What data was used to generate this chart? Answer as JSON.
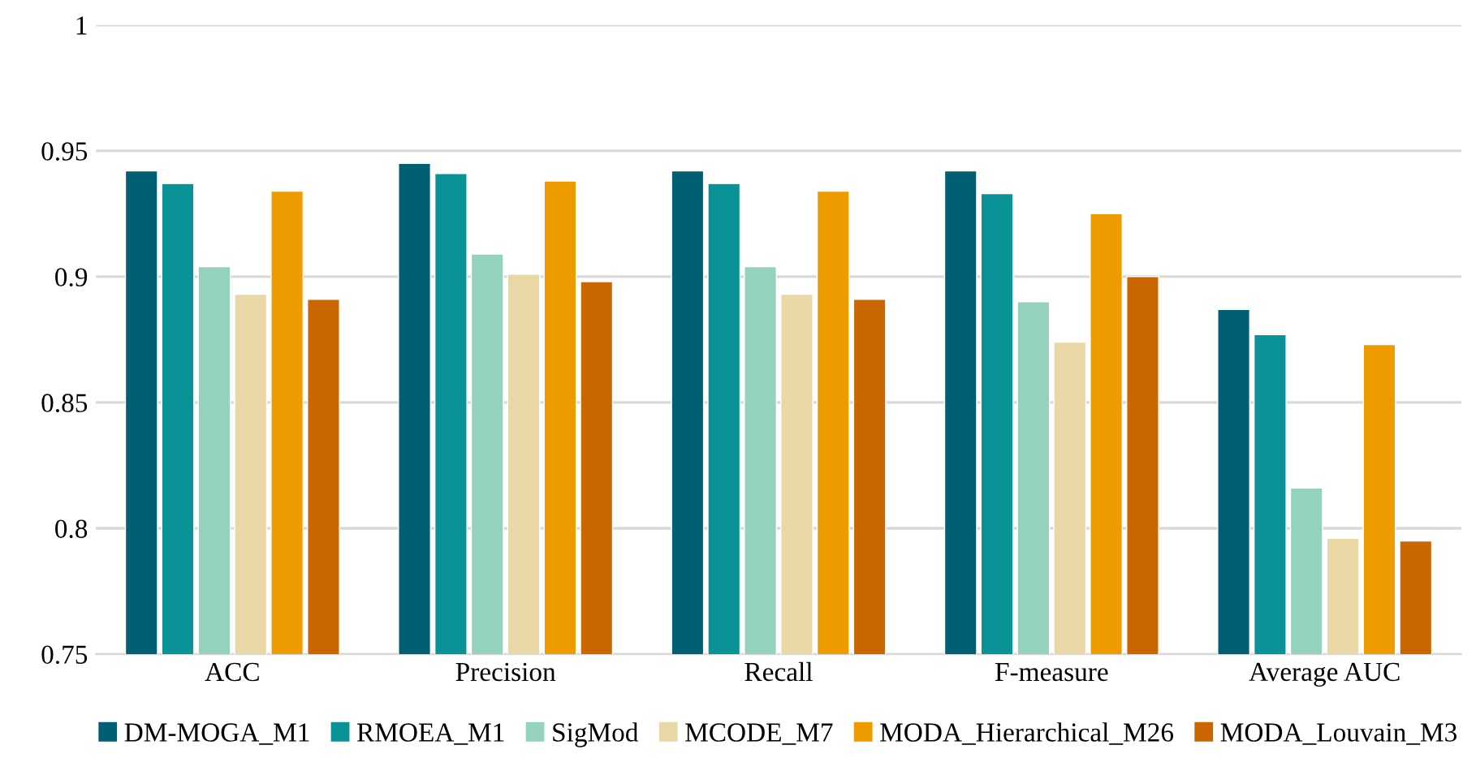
{
  "chart_data": {
    "type": "bar",
    "categories": [
      "ACC",
      "Precision",
      "Recall",
      "F-measure",
      "Average AUC"
    ],
    "series": [
      {
        "name": "DM-MOGA_M1",
        "color": "#005f73",
        "values": [
          0.942,
          0.945,
          0.942,
          0.942,
          0.887
        ]
      },
      {
        "name": "RMOEA_M1",
        "color": "#0a9396",
        "values": [
          0.937,
          0.941,
          0.937,
          0.933,
          0.877
        ]
      },
      {
        "name": "SigMod",
        "color": "#94d2bd",
        "values": [
          0.904,
          0.909,
          0.904,
          0.89,
          0.816
        ]
      },
      {
        "name": "MCODE_M7",
        "color": "#e9d8a6",
        "values": [
          0.893,
          0.901,
          0.893,
          0.874,
          0.796
        ]
      },
      {
        "name": "MODA_Hierarchical_M26",
        "color": "#ee9b00",
        "values": [
          0.934,
          0.938,
          0.934,
          0.925,
          0.873
        ]
      },
      {
        "name": "MODA_Louvain_M3",
        "color": "#ca6702",
        "values": [
          0.891,
          0.898,
          0.891,
          0.9,
          0.795
        ]
      }
    ],
    "ylim": [
      0.75,
      1
    ],
    "yticks": [
      0.75,
      0.8,
      0.85,
      0.9,
      0.95,
      1
    ],
    "grid": "y",
    "legend": "bottom"
  }
}
